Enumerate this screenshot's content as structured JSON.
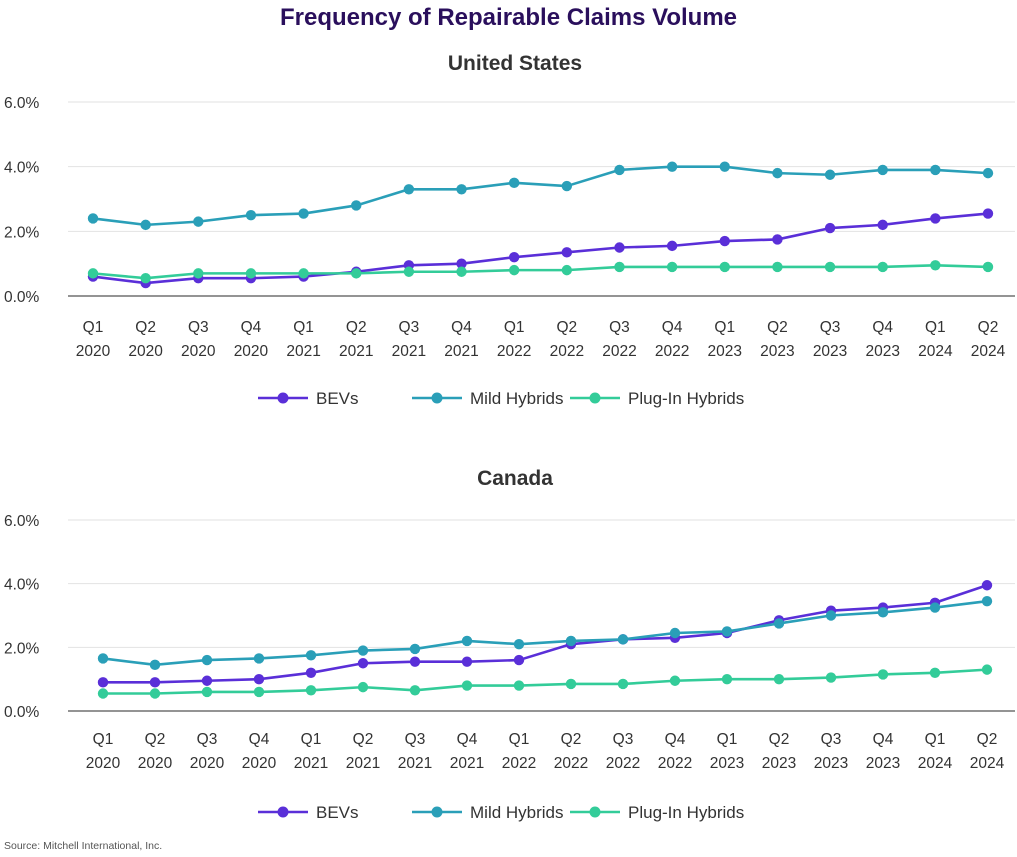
{
  "title": "Frequency of Repairable Claims Volume",
  "source": "Source: Mitchell International, Inc.",
  "colors": {
    "BEVs": "#5a2fd8",
    "Mild Hybrids": "#2a9fb8",
    "Plug-In Hybrids": "#33cc99",
    "title": "#2a0f5c"
  },
  "chart_data": [
    {
      "type": "line",
      "title": "United States",
      "y_ticks": [
        "0.0%",
        "2.0%",
        "4.0%",
        "6.0%"
      ],
      "ylim": [
        0,
        6
      ],
      "grid": true,
      "legend_position": "bottom",
      "categories": [
        [
          "Q1",
          "2020"
        ],
        [
          "Q2",
          "2020"
        ],
        [
          "Q3",
          "2020"
        ],
        [
          "Q4",
          "2020"
        ],
        [
          "Q1",
          "2021"
        ],
        [
          "Q2",
          "2021"
        ],
        [
          "Q3",
          "2021"
        ],
        [
          "Q4",
          "2021"
        ],
        [
          "Q1",
          "2022"
        ],
        [
          "Q2",
          "2022"
        ],
        [
          "Q3",
          "2022"
        ],
        [
          "Q4",
          "2022"
        ],
        [
          "Q1",
          "2023"
        ],
        [
          "Q2",
          "2023"
        ],
        [
          "Q3",
          "2023"
        ],
        [
          "Q4",
          "2023"
        ],
        [
          "Q1",
          "2024"
        ],
        [
          "Q2",
          "2024"
        ]
      ],
      "series": [
        {
          "name": "BEVs",
          "values": [
            0.6,
            0.4,
            0.55,
            0.55,
            0.6,
            0.75,
            0.95,
            1.0,
            1.2,
            1.35,
            1.5,
            1.55,
            1.7,
            1.75,
            2.1,
            2.2,
            2.4,
            2.55
          ]
        },
        {
          "name": "Mild Hybrids",
          "values": [
            2.4,
            2.2,
            2.3,
            2.5,
            2.55,
            2.8,
            3.3,
            3.3,
            3.5,
            3.4,
            3.9,
            4.0,
            4.0,
            3.8,
            3.75,
            3.9,
            3.9,
            3.8
          ]
        },
        {
          "name": "Plug-In Hybrids",
          "values": [
            0.7,
            0.55,
            0.7,
            0.7,
            0.7,
            0.7,
            0.75,
            0.75,
            0.8,
            0.8,
            0.9,
            0.9,
            0.9,
            0.9,
            0.9,
            0.9,
            0.95,
            0.9
          ]
        }
      ]
    },
    {
      "type": "line",
      "title": "Canada",
      "y_ticks": [
        "0.0%",
        "2.0%",
        "4.0%",
        "6.0%"
      ],
      "ylim": [
        0,
        6
      ],
      "grid": true,
      "legend_position": "bottom",
      "categories": [
        [
          "Q1",
          "2020"
        ],
        [
          "Q2",
          "2020"
        ],
        [
          "Q3",
          "2020"
        ],
        [
          "Q4",
          "2020"
        ],
        [
          "Q1",
          "2021"
        ],
        [
          "Q2",
          "2021"
        ],
        [
          "Q3",
          "2021"
        ],
        [
          "Q4",
          "2021"
        ],
        [
          "Q1",
          "2022"
        ],
        [
          "Q2",
          "2022"
        ],
        [
          "Q3",
          "2022"
        ],
        [
          "Q4",
          "2022"
        ],
        [
          "Q1",
          "2023"
        ],
        [
          "Q2",
          "2023"
        ],
        [
          "Q3",
          "2023"
        ],
        [
          "Q4",
          "2023"
        ],
        [
          "Q1",
          "2024"
        ],
        [
          "Q2",
          "2024"
        ]
      ],
      "series": [
        {
          "name": "BEVs",
          "values": [
            0.9,
            0.9,
            0.95,
            1.0,
            1.2,
            1.5,
            1.55,
            1.55,
            1.6,
            2.1,
            2.25,
            2.3,
            2.45,
            2.85,
            3.15,
            3.25,
            3.4,
            3.95
          ]
        },
        {
          "name": "Mild Hybrids",
          "values": [
            1.65,
            1.45,
            1.6,
            1.65,
            1.75,
            1.9,
            1.95,
            2.2,
            2.1,
            2.2,
            2.25,
            2.45,
            2.5,
            2.75,
            3.0,
            3.1,
            3.25,
            3.45
          ]
        },
        {
          "name": "Plug-In Hybrids",
          "values": [
            0.55,
            0.55,
            0.6,
            0.6,
            0.65,
            0.75,
            0.65,
            0.8,
            0.8,
            0.85,
            0.85,
            0.95,
            1.0,
            1.0,
            1.05,
            1.15,
            1.2,
            1.3
          ]
        }
      ]
    }
  ]
}
